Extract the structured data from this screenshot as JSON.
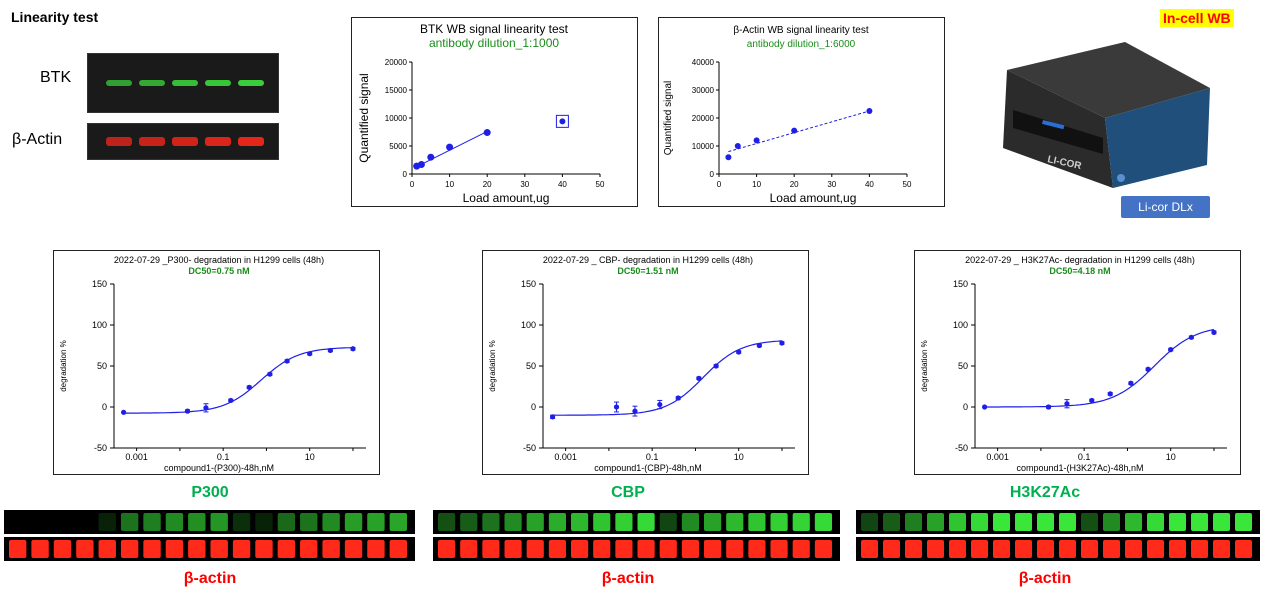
{
  "header": {
    "title": "Linearity test"
  },
  "blots": {
    "btk": {
      "label": "BTK",
      "intensity": [
        0.7,
        0.75,
        0.85,
        0.9,
        0.95
      ]
    },
    "actin": {
      "label": "β-Actin",
      "intensity": [
        0.8,
        0.85,
        0.9,
        0.95,
        1.0
      ]
    }
  },
  "instrument": {
    "badge": "In-cell WB",
    "logo_text": "LI-COR",
    "button_label": "Li-cor DLx"
  },
  "linearity_charts": [
    {
      "type": "scatter",
      "title": "BTK  WB  signal  linearity  test",
      "subtitle": "antibody  dilution_1:1000",
      "xlabel": "Load  amount,ug",
      "ylabel": "Quantified  signal",
      "xlim": [
        0,
        50
      ],
      "ylim": [
        0,
        20000
      ],
      "xticks": [
        "0",
        "10",
        "20",
        "30",
        "40",
        "50"
      ],
      "yticks": [
        "0",
        "5000",
        "10000",
        "15000",
        "20000"
      ],
      "points": [
        {
          "x": 1.25,
          "y": 1400
        },
        {
          "x": 2.5,
          "y": 1700
        },
        {
          "x": 5,
          "y": 3000
        },
        {
          "x": 10,
          "y": 4800
        },
        {
          "x": 20,
          "y": 7400
        }
      ],
      "outlier": {
        "x": 40,
        "y": 9400
      },
      "fit": {
        "x0": 1.25,
        "y0": 1300,
        "x1": 20,
        "y1": 7600
      }
    },
    {
      "type": "scatter",
      "title": "β-Actin WB signal linearity test",
      "subtitle": "antibody  dilution_1:6000",
      "xlabel": "Load  amount,ug",
      "ylabel": "Quantified  signal",
      "xlim": [
        0,
        50
      ],
      "ylim": [
        0,
        40000
      ],
      "xticks": [
        "0",
        "10",
        "20",
        "30",
        "40",
        "50"
      ],
      "yticks": [
        "0",
        "10000",
        "20000",
        "30000",
        "40000"
      ],
      "points": [
        {
          "x": 2.5,
          "y": 6000
        },
        {
          "x": 5,
          "y": 10000
        },
        {
          "x": 10,
          "y": 12000
        },
        {
          "x": 20,
          "y": 15500
        },
        {
          "x": 40,
          "y": 22500
        }
      ],
      "fit": {
        "x0": 2.5,
        "y0": 8000,
        "x1": 40,
        "y1": 22500
      }
    }
  ],
  "chart_data": [
    {
      "type": "scatter",
      "title": "2022-07-29 _P300- degradation in   H1299 cells (48h)",
      "subtitle": "DC50=0.75  nM",
      "xlabel": "compound1-(P300)-48h,nM",
      "ylabel": "degradation %",
      "x_scale": "log",
      "xlim": [
        0.0003,
        200
      ],
      "ylim": [
        -50,
        150
      ],
      "xticks": [
        "0.001",
        "0.1",
        "10"
      ],
      "yticks": [
        "-50",
        "0",
        "50",
        "100",
        "150"
      ],
      "curve": {
        "bottom": -7.5,
        "top": 73,
        "ec50": 0.75,
        "hill": 1.0
      },
      "x": [
        0.0005,
        0.015,
        0.04,
        0.15,
        0.4,
        1.2,
        3,
        10,
        30,
        100
      ],
      "y": [
        -6.5,
        -5,
        -1,
        8,
        24,
        40,
        56,
        65,
        69,
        71
      ],
      "err": [
        0,
        1.5,
        5,
        1.5,
        1.5,
        1.5,
        1.5,
        1.5,
        1.5,
        1.5
      ]
    },
    {
      "type": "scatter",
      "title": "2022-07-29 _ CBP- degradation in   H1299 cells (48h)",
      "subtitle": "DC50=1.51  nM",
      "xlabel": "compound1-(CBP)-48h,nM",
      "ylabel": "degradation %",
      "x_scale": "log",
      "xlim": [
        0.0003,
        200
      ],
      "ylim": [
        -50,
        150
      ],
      "xticks": [
        "0.001",
        "0.1",
        "10"
      ],
      "yticks": [
        "-50",
        "0",
        "50",
        "100",
        "150"
      ],
      "curve": {
        "bottom": -10,
        "top": 82,
        "ec50": 1.51,
        "hill": 1.0
      },
      "x": [
        0.0005,
        0.015,
        0.04,
        0.15,
        0.4,
        1.2,
        3,
        10,
        30,
        100
      ],
      "y": [
        -12,
        0,
        -5,
        3,
        11,
        35,
        50,
        67,
        75,
        78
      ],
      "err": [
        2,
        6,
        6,
        5,
        1.5,
        1.5,
        1.5,
        1.5,
        1.5,
        1.5
      ]
    },
    {
      "type": "scatter",
      "title": "2022-07-29 _ H3K27Ac- degradation in H1299 cells (48h)",
      "subtitle": "DC50=4.18  nM",
      "xlabel": "compound1-(H3K27Ac)-48h,nM",
      "ylabel": "degradation %",
      "x_scale": "log",
      "xlim": [
        0.0003,
        200
      ],
      "ylim": [
        -50,
        150
      ],
      "xticks": [
        "0.001",
        "0.1",
        "10"
      ],
      "yticks": [
        "-50",
        "0",
        "50",
        "100",
        "150"
      ],
      "curve": {
        "bottom": 0,
        "top": 100,
        "ec50": 4.18,
        "hill": 0.9
      },
      "x": [
        0.0005,
        0.015,
        0.04,
        0.15,
        0.4,
        1.2,
        3,
        10,
        30,
        100
      ],
      "y": [
        0,
        0,
        4,
        8,
        16,
        29,
        46,
        70,
        85,
        91
      ],
      "err": [
        0,
        1.5,
        5,
        1.5,
        1.5,
        1.5,
        1.5,
        1.5,
        1.5,
        1.5
      ]
    }
  ],
  "incell_strips": [
    {
      "caption": "P300",
      "ref_caption": "β-actin",
      "signal": [
        0,
        0,
        0,
        0,
        0.15,
        0.5,
        0.55,
        0.6,
        0.62,
        0.65,
        0.2,
        0.15,
        0.45,
        0.5,
        0.6,
        0.68,
        0.7,
        0.72
      ],
      "ref": [
        1,
        1,
        1,
        1,
        1,
        1,
        1,
        1,
        1,
        1,
        1,
        1,
        1,
        1,
        1,
        1,
        1,
        1
      ]
    },
    {
      "caption": "CBP",
      "ref_caption": "β-actin",
      "signal": [
        0.35,
        0.4,
        0.5,
        0.6,
        0.7,
        0.75,
        0.8,
        0.85,
        0.9,
        0.95,
        0.3,
        0.6,
        0.7,
        0.8,
        0.85,
        0.9,
        0.92,
        0.95
      ],
      "ref": [
        1,
        1,
        1,
        1,
        1,
        1,
        1,
        1,
        1,
        1,
        1,
        1,
        1,
        1,
        1,
        1,
        1,
        1
      ]
    },
    {
      "caption": "H3K27Ac",
      "ref_caption": "β-actin",
      "signal": [
        0.3,
        0.4,
        0.55,
        0.7,
        0.85,
        0.95,
        1,
        1,
        1,
        1,
        0.35,
        0.6,
        0.8,
        0.95,
        1,
        1,
        1,
        1
      ],
      "ref": [
        1,
        1,
        1,
        1,
        1,
        1,
        1,
        1,
        1,
        1,
        1,
        1,
        1,
        1,
        1,
        1,
        1,
        1
      ]
    }
  ],
  "colors": {
    "point": "#1f1fe6",
    "fit": "#1f1fe6",
    "subtitle": "#1a8c1a",
    "signal": "#39e639",
    "ref": "#ff2a1a",
    "caption_green": "#00b050",
    "caption_red": "#ff0000"
  }
}
